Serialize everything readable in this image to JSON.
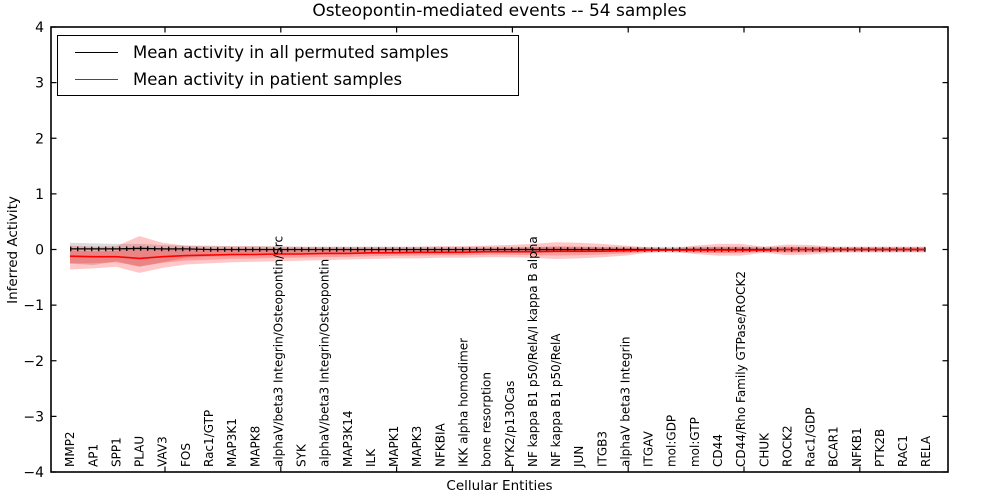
{
  "title": "Osteopontin-mediated events -- 54 samples",
  "legend": {
    "items": [
      {
        "label": "Mean activity in all permuted samples",
        "color": "#000000"
      },
      {
        "label": "Mean activity in patient samples",
        "color": "#ff0000"
      }
    ]
  },
  "chart_data": {
    "type": "line",
    "title": "Osteopontin-mediated events -- 54 samples",
    "xlabel": "Cellular Entities",
    "ylabel": "Inferred Activity",
    "ylim": [
      -4,
      4
    ],
    "ytick_values": [
      4,
      3,
      2,
      1,
      0,
      -1,
      -2,
      -3,
      -4
    ],
    "ytick_labels": [
      "4",
      "3",
      "2",
      "1",
      "0",
      "−1",
      "−2",
      "−3",
      "−4"
    ],
    "grid": false,
    "legend_position": "upper left",
    "categories": [
      "MMP2",
      "AP1",
      "SPP1",
      "PLAU",
      "VAV3",
      "FOS",
      "Rac1/GTP",
      "MAP3K1",
      "MAPK8",
      "alphaV/beta3 Integrin/Osteopontin/Src",
      "SYK",
      "alphaV/beta3 Integrin/Osteopontin",
      "MAP3K14",
      "ILK",
      "MAPK1",
      "MAPK3",
      "NFKBIA",
      "IKK alpha homodimer",
      "bone resorption",
      "PYK2/p130Cas",
      "NF kappa B1 p50/RelA/I kappa B alpha",
      "NF kappa B1 p50/RelA",
      "JUN",
      "ITGB3",
      "alphaV beta3 Integrin",
      "ITGAV",
      "mol:GDP",
      "mol:GTP",
      "CD44",
      "CD44/Rho Family GTPase/ROCK2",
      "CHUK",
      "ROCK2",
      "Rac1/GDP",
      "BCAR1",
      "NFKB1",
      "PTK2B",
      "RAC1",
      "RELA"
    ],
    "series": [
      {
        "name": "Mean activity in all permuted samples",
        "color": "#000000",
        "values": [
          0.01,
          0.01,
          0.01,
          0.02,
          0.01,
          0.01,
          0.0,
          0.0,
          0.0,
          0.0,
          0.0,
          0.0,
          0.0,
          0.0,
          0.0,
          0.0,
          0.0,
          0.0,
          0.0,
          0.0,
          0.0,
          0.0,
          0.0,
          0.0,
          0.0,
          0.0,
          0.0,
          0.0,
          0.0,
          0.0,
          0.0,
          0.0,
          0.0,
          0.0,
          0.0,
          0.0,
          0.0,
          0.0
        ]
      },
      {
        "name": "Mean activity in patient samples",
        "color": "#ff0000",
        "values": [
          -0.12,
          -0.13,
          -0.13,
          -0.16,
          -0.13,
          -0.11,
          -0.1,
          -0.09,
          -0.09,
          -0.08,
          -0.08,
          -0.07,
          -0.07,
          -0.06,
          -0.06,
          -0.05,
          -0.05,
          -0.05,
          -0.04,
          -0.04,
          -0.04,
          -0.03,
          -0.03,
          -0.03,
          -0.02,
          -0.01,
          -0.01,
          -0.01,
          -0.01,
          -0.01,
          -0.01,
          0.0,
          0.0,
          0.0,
          0.0,
          0.0,
          0.0,
          0.0
        ]
      }
    ],
    "bands": [
      {
        "name": "permuted-samples-range",
        "color": "#999999",
        "opacity": 0.35,
        "upper": [
          0.12,
          0.11,
          0.1,
          0.1,
          0.08,
          0.07,
          0.07,
          0.06,
          0.06,
          0.06,
          0.05,
          0.05,
          0.05,
          0.05,
          0.05,
          0.05,
          0.05,
          0.05,
          0.05,
          0.05,
          0.05,
          0.05,
          0.05,
          0.05,
          0.05,
          0.05,
          0.05,
          0.05,
          0.05,
          0.05,
          0.05,
          0.05,
          0.05,
          0.05,
          0.05,
          0.05,
          0.05,
          0.05
        ],
        "lower": [
          -0.25,
          -0.28,
          -0.21,
          -0.31,
          -0.23,
          -0.15,
          -0.13,
          -0.11,
          -0.1,
          -0.1,
          -0.09,
          -0.09,
          -0.08,
          -0.08,
          -0.07,
          -0.07,
          -0.07,
          -0.06,
          -0.06,
          -0.06,
          -0.06,
          -0.06,
          -0.06,
          -0.05,
          -0.05,
          -0.05,
          -0.06,
          -0.06,
          -0.06,
          -0.05,
          -0.05,
          -0.05,
          -0.05,
          -0.05,
          -0.05,
          -0.05,
          -0.05,
          -0.05
        ]
      },
      {
        "name": "patient-samples-range",
        "color": "#ff0000",
        "opacity": 0.22,
        "upper": [
          0.07,
          0.05,
          0.06,
          0.24,
          0.12,
          0.07,
          0.06,
          0.06,
          0.06,
          0.05,
          0.05,
          0.05,
          0.05,
          0.05,
          0.05,
          0.05,
          0.06,
          0.06,
          0.07,
          0.08,
          0.1,
          0.13,
          0.12,
          0.1,
          0.07,
          0.04,
          0.02,
          0.07,
          0.1,
          0.1,
          0.05,
          0.09,
          0.08,
          0.05,
          0.05,
          0.05,
          0.05,
          0.05
        ],
        "lower": [
          -0.36,
          -0.34,
          -0.31,
          -0.42,
          -0.33,
          -0.27,
          -0.25,
          -0.23,
          -0.22,
          -0.21,
          -0.2,
          -0.19,
          -0.18,
          -0.17,
          -0.16,
          -0.16,
          -0.15,
          -0.15,
          -0.14,
          -0.14,
          -0.15,
          -0.17,
          -0.16,
          -0.14,
          -0.11,
          -0.06,
          -0.03,
          -0.08,
          -0.11,
          -0.11,
          -0.06,
          -0.1,
          -0.09,
          -0.06,
          -0.05,
          -0.05,
          -0.05,
          -0.05
        ]
      }
    ]
  }
}
